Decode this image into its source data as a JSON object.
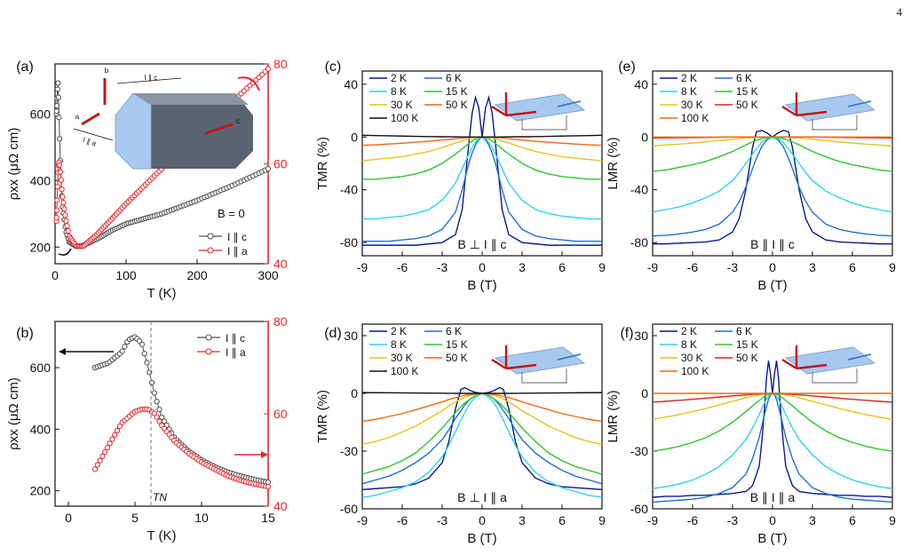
{
  "page_number": "4",
  "colors": {
    "c_black": "#4d4d4d",
    "c_red": "#e8262a",
    "2K": "#0a1a8c",
    "6K": "#1f6fd6",
    "8K": "#2fd2ee",
    "15K": "#2ec72e",
    "30K": "#e6c21e",
    "50K": "#ee6a14",
    "100K": "#dd2222",
    "100Kc": "#111111"
  },
  "chart_data": [
    {
      "panel": "(a)",
      "type": "scatter",
      "xlabel": "T (K)",
      "ylabel": "ρxx (μΩ cm)",
      "xlim": [
        0,
        300
      ],
      "ylim": [
        150,
        750
      ],
      "y2lim": [
        40,
        80
      ],
      "xticks": [
        "0",
        "100",
        "200",
        "300"
      ],
      "yticks": [
        "200",
        "400",
        "600"
      ],
      "y2ticks": [
        "40",
        "60",
        "80"
      ],
      "annotations": [
        "B = 0",
        "I ∥ c",
        "I ∥ a",
        "b",
        "c",
        "a"
      ],
      "legend": [
        "I ∥ c",
        "I ∥ a"
      ],
      "series": [
        {
          "name": "I ∥ c",
          "axis": "left",
          "x": [
            2,
            3,
            4,
            5,
            6,
            8,
            10,
            15,
            20,
            30,
            40,
            60,
            80,
            100,
            150,
            200,
            250,
            300
          ],
          "y": [
            600,
            650,
            700,
            640,
            560,
            420,
            330,
            250,
            215,
            202,
            205,
            225,
            250,
            270,
            300,
            340,
            385,
            435
          ]
        },
        {
          "name": "I ∥ a",
          "axis": "right",
          "x": [
            2,
            3,
            4,
            5,
            6,
            8,
            10,
            15,
            20,
            30,
            40,
            60,
            80,
            100,
            150,
            200,
            250,
            300
          ],
          "y": [
            48.5,
            53,
            58,
            60,
            60.5,
            57.5,
            54,
            49,
            45.5,
            43.5,
            43.5,
            46,
            49,
            52,
            59,
            66,
            72.5,
            79
          ]
        }
      ]
    },
    {
      "panel": "(b)",
      "type": "scatter",
      "xlabel": "T (K)",
      "ylabel": "ρxx (μΩ cm)",
      "xlim": [
        -1,
        15
      ],
      "ylim": [
        150,
        750
      ],
      "y2lim": [
        40,
        80
      ],
      "xticks": [
        "0",
        "5",
        "10",
        "15"
      ],
      "yticks": [
        "200",
        "400",
        "600"
      ],
      "y2ticks": [
        "40",
        "60",
        "80"
      ],
      "annotations": [
        "TN"
      ],
      "legend": [
        "I ∥ c",
        "I ∥ a"
      ],
      "series": [
        {
          "name": "I ∥ c",
          "axis": "left",
          "x": [
            2,
            3,
            4,
            4.5,
            5,
            5.5,
            6,
            6.5,
            7,
            8,
            9,
            10,
            11,
            12,
            13,
            14,
            15
          ],
          "y": [
            600,
            615,
            650,
            690,
            700,
            680,
            600,
            510,
            440,
            370,
            330,
            300,
            278,
            260,
            247,
            236,
            228
          ]
        },
        {
          "name": "I ∥ a",
          "axis": "right",
          "x": [
            2,
            3,
            4,
            5,
            5.5,
            6,
            6.5,
            7,
            8,
            9,
            10,
            11,
            12,
            13,
            14,
            15
          ],
          "y": [
            48,
            53,
            58,
            60.5,
            61,
            61,
            60,
            57.5,
            54,
            51.5,
            49.5,
            48,
            46.5,
            45.5,
            44.8,
            44.2
          ]
        }
      ]
    },
    {
      "panel": "(c)",
      "type": "line",
      "xlabel": "B (T)",
      "ylabel": "TMR (%)",
      "configuration": "B ⊥ I ∥ c",
      "xlim": [
        -9,
        9
      ],
      "ylim": [
        -90,
        50
      ],
      "xticks": [
        "-9",
        "-6",
        "-3",
        "0",
        "3",
        "6",
        "9"
      ],
      "yticks": [
        "-80",
        "-40",
        "0",
        "40"
      ],
      "x": [
        0,
        0.25,
        0.5,
        0.75,
        1,
        1.5,
        2,
        3,
        4,
        5,
        6,
        7,
        8,
        9
      ],
      "series": [
        {
          "name": "2 K",
          "y": [
            0,
            22,
            30,
            18,
            -5,
            -55,
            -74,
            -80,
            -81,
            -82,
            -82,
            -82,
            -82,
            -82
          ]
        },
        {
          "name": "6 K",
          "y": [
            0,
            -2,
            -6,
            -12,
            -20,
            -40,
            -57,
            -70,
            -75,
            -77,
            -78,
            -79,
            -79,
            -79
          ]
        },
        {
          "name": "8 K",
          "y": [
            0,
            -1,
            -4,
            -8,
            -13,
            -24,
            -35,
            -48,
            -55,
            -58,
            -60,
            -61,
            -62,
            -62
          ]
        },
        {
          "name": "15 K",
          "y": [
            0,
            -0.5,
            -1.5,
            -3,
            -5,
            -9,
            -13,
            -20,
            -25,
            -28,
            -30,
            -31,
            -32,
            -32
          ]
        },
        {
          "name": "30 K",
          "y": [
            0,
            -0.2,
            -0.5,
            -1,
            -1.5,
            -3,
            -4.5,
            -8,
            -11,
            -13,
            -15,
            -16,
            -17,
            -18
          ]
        },
        {
          "name": "50 K",
          "y": [
            0,
            0,
            -0.1,
            -0.2,
            -0.4,
            -0.8,
            -1.3,
            -2.3,
            -3.2,
            -4,
            -4.7,
            -5.3,
            -5.9,
            -6.3
          ]
        },
        {
          "name": "100 K",
          "y": [
            0,
            0,
            0,
            0,
            0,
            0.05,
            0.1,
            0.2,
            0.35,
            0.5,
            0.7,
            0.9,
            1.1,
            1.3
          ]
        }
      ]
    },
    {
      "panel": "(d)",
      "type": "line",
      "xlabel": "B (T)",
      "ylabel": "TMR (%)",
      "configuration": "B ⊥ I ∥ a",
      "xlim": [
        -9,
        9
      ],
      "ylim": [
        -60,
        36
      ],
      "xticks": [
        "-9",
        "-6",
        "-3",
        "0",
        "3",
        "6",
        "9"
      ],
      "yticks": [
        "-60",
        "-30",
        "0",
        "30"
      ],
      "x": [
        0,
        0.5,
        0.9,
        1.3,
        1.6,
        2,
        2.5,
        3,
        4,
        5,
        6,
        7,
        8,
        9
      ],
      "series": [
        {
          "name": "2 K",
          "y": [
            0,
            0.5,
            1.5,
            3,
            2,
            -8,
            -25,
            -36,
            -44,
            -47,
            -48.5,
            -49,
            -49.5,
            -50
          ]
        },
        {
          "name": "6 K",
          "y": [
            0,
            -1,
            -3,
            -6,
            -9,
            -13,
            -19,
            -24,
            -31,
            -36,
            -40,
            -43,
            -45,
            -47
          ]
        },
        {
          "name": "8 K",
          "y": [
            0,
            -2,
            -5,
            -10,
            -14,
            -20,
            -27,
            -33,
            -41,
            -46,
            -49,
            -51,
            -53,
            -54
          ]
        },
        {
          "name": "15 K",
          "y": [
            0,
            -1,
            -3,
            -5,
            -7,
            -10,
            -14,
            -18,
            -25,
            -31,
            -35,
            -38,
            -40,
            -42
          ]
        },
        {
          "name": "30 K",
          "y": [
            0,
            -0.5,
            -1,
            -2,
            -3,
            -4.5,
            -6.5,
            -9,
            -13,
            -17,
            -20,
            -23,
            -25,
            -26.5
          ]
        },
        {
          "name": "50 K",
          "y": [
            0,
            -0.2,
            -0.5,
            -1,
            -1.5,
            -2.2,
            -3.2,
            -4.4,
            -6.5,
            -8.5,
            -10.5,
            -12,
            -13.5,
            -14.5
          ]
        },
        {
          "name": "100 K",
          "y": [
            0,
            0,
            0,
            0,
            0,
            0,
            0.05,
            0.1,
            0.15,
            0.2,
            0.25,
            0.3,
            0.35,
            0.4
          ]
        }
      ]
    },
    {
      "panel": "(e)",
      "type": "line",
      "xlabel": "B (T)",
      "ylabel": "LMR (%)",
      "configuration": "B ∥ I ∥ c",
      "xlim": [
        -9,
        9
      ],
      "ylim": [
        -90,
        50
      ],
      "xticks": [
        "-9",
        "-6",
        "-3",
        "0",
        "3",
        "6",
        "9"
      ],
      "yticks": [
        "-80",
        "-40",
        "0",
        "40"
      ],
      "x": [
        0,
        0.4,
        0.8,
        1.2,
        1.5,
        2,
        2.5,
        3,
        4,
        5,
        6,
        7,
        8,
        9
      ],
      "series": [
        {
          "name": "2 K",
          "y": [
            0,
            3,
            5,
            4,
            -8,
            -40,
            -62,
            -72,
            -78,
            -79.5,
            -80,
            -80.5,
            -81,
            -81
          ]
        },
        {
          "name": "6 K",
          "y": [
            0,
            -2,
            -7,
            -16,
            -24,
            -38,
            -49,
            -57,
            -66,
            -70,
            -72,
            -73.5,
            -74.5,
            -75
          ]
        },
        {
          "name": "8 K",
          "y": [
            0,
            -1,
            -4,
            -9,
            -13,
            -20,
            -27,
            -33,
            -41,
            -46,
            -50,
            -53,
            -55,
            -57
          ]
        },
        {
          "name": "15 K",
          "y": [
            0,
            -0.3,
            -1.2,
            -2.5,
            -3.7,
            -6,
            -8.5,
            -11,
            -15,
            -18.5,
            -21,
            -23,
            -25,
            -26
          ]
        },
        {
          "name": "30 K",
          "y": [
            0,
            0,
            -0.1,
            -0.3,
            -0.5,
            -0.8,
            -1.2,
            -1.7,
            -2.7,
            -3.7,
            -4.6,
            -5.4,
            -6.1,
            -6.7
          ]
        },
        {
          "name": "50 K",
          "y": [
            0,
            0,
            0,
            0,
            0,
            0,
            0,
            -0.1,
            -0.2,
            -0.3,
            -0.4,
            -0.5,
            -0.6,
            -0.7
          ]
        },
        {
          "name": "100 K",
          "y": [
            0,
            0,
            0,
            0,
            0,
            0,
            0,
            0,
            0,
            0,
            0,
            0,
            0,
            0
          ]
        }
      ]
    },
    {
      "panel": "(f)",
      "type": "line",
      "xlabel": "B (T)",
      "ylabel": "LMR (%)",
      "configuration": "B ∥ I ∥ a",
      "xlim": [
        -9,
        9
      ],
      "ylim": [
        -60,
        36
      ],
      "xticks": [
        "-9",
        "-6",
        "-3",
        "0",
        "3",
        "6",
        "9"
      ],
      "yticks": [
        "-60",
        "-30",
        "0",
        "30"
      ],
      "x": [
        0,
        0.15,
        0.3,
        0.45,
        0.6,
        0.8,
        1,
        1.5,
        2,
        3,
        4,
        5,
        6,
        7,
        8,
        9
      ],
      "series": [
        {
          "name": "2 K",
          "y": [
            0,
            10,
            17,
            8,
            -8,
            -25,
            -38,
            -48,
            -51,
            -52,
            -52.5,
            -53,
            -53,
            -53.5,
            -53.5,
            -54
          ]
        },
        {
          "name": "6 K",
          "y": [
            0,
            -1,
            -3,
            -7,
            -11,
            -17,
            -23,
            -34,
            -42,
            -49,
            -52,
            -54,
            -55,
            -55.5,
            -56,
            -56.5
          ]
        },
        {
          "name": "8 K",
          "y": [
            0,
            -0.5,
            -1.5,
            -3,
            -5,
            -8,
            -11,
            -18,
            -24,
            -32,
            -38,
            -42,
            -45,
            -47,
            -48.5,
            -49.5
          ]
        },
        {
          "name": "15 K",
          "y": [
            0,
            -0.2,
            -0.5,
            -1,
            -1.6,
            -2.6,
            -3.7,
            -6.5,
            -9.5,
            -15,
            -19.5,
            -23,
            -25.5,
            -27.5,
            -29,
            -30
          ]
        },
        {
          "name": "30 K",
          "y": [
            0,
            0,
            -0.1,
            -0.2,
            -0.3,
            -0.5,
            -0.8,
            -1.5,
            -2.3,
            -4.2,
            -6,
            -7.8,
            -9.5,
            -11,
            -12.3,
            -13.5
          ]
        },
        {
          "name": "50 K",
          "y": [
            0,
            0,
            0,
            0,
            -0.1,
            -0.2,
            -0.3,
            -0.5,
            -0.8,
            -1.3,
            -1.9,
            -2.5,
            -3.1,
            -3.6,
            -4.1,
            -4.6
          ]
        },
        {
          "name": "100 K",
          "y": [
            0,
            0,
            0,
            0,
            0,
            0,
            0,
            0,
            0,
            0,
            0,
            0,
            0,
            0,
            0,
            0
          ]
        }
      ]
    }
  ]
}
